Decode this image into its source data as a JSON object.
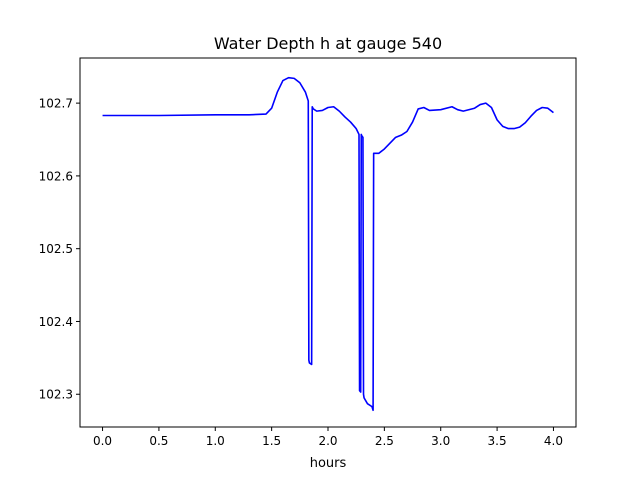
{
  "chart_data": {
    "type": "line",
    "title": "Water Depth h at gauge 540",
    "xlabel": "hours",
    "ylabel": "",
    "xlim": [
      -0.2,
      4.2
    ],
    "ylim": [
      102.255,
      102.762
    ],
    "xticks": [
      0.0,
      0.5,
      1.0,
      1.5,
      2.0,
      2.5,
      3.0,
      3.5,
      4.0
    ],
    "xtick_labels": [
      "0.0",
      "0.5",
      "1.0",
      "1.5",
      "2.0",
      "2.5",
      "3.0",
      "3.5",
      "4.0"
    ],
    "yticks": [
      102.3,
      102.4,
      102.5,
      102.6,
      102.7
    ],
    "ytick_labels": [
      "102.3",
      "102.4",
      "102.5",
      "102.6",
      "102.7"
    ],
    "grid": false,
    "series": [
      {
        "color": "#0000ff",
        "x": [
          0.0,
          0.5,
          1.0,
          1.3,
          1.45,
          1.5,
          1.55,
          1.6,
          1.65,
          1.7,
          1.75,
          1.8,
          1.825,
          1.83,
          1.835,
          1.855,
          1.86,
          1.87,
          1.9,
          1.95,
          2.0,
          2.05,
          2.1,
          2.15,
          2.2,
          2.25,
          2.275,
          2.28,
          2.29,
          2.295,
          2.3,
          2.31,
          2.315,
          2.32,
          2.35,
          2.39,
          2.4,
          2.405,
          2.45,
          2.5,
          2.6,
          2.65,
          2.7,
          2.75,
          2.8,
          2.85,
          2.9,
          3.0,
          3.1,
          3.15,
          3.2,
          3.3,
          3.35,
          3.4,
          3.45,
          3.5,
          3.55,
          3.6,
          3.65,
          3.7,
          3.75,
          3.8,
          3.85,
          3.9,
          3.95,
          4.0
        ],
        "y": [
          102.683,
          102.683,
          102.684,
          102.684,
          102.685,
          102.693,
          102.715,
          102.731,
          102.735,
          102.734,
          102.728,
          102.715,
          102.703,
          102.347,
          102.343,
          102.341,
          102.695,
          102.692,
          102.689,
          102.69,
          102.694,
          102.695,
          102.689,
          102.681,
          102.674,
          102.665,
          102.657,
          102.305,
          102.303,
          102.657,
          102.655,
          102.653,
          102.3,
          102.295,
          102.287,
          102.283,
          102.278,
          102.631,
          102.631,
          102.637,
          102.653,
          102.656,
          102.661,
          102.674,
          102.692,
          102.694,
          102.69,
          102.691,
          102.695,
          102.691,
          102.689,
          102.693,
          102.698,
          102.7,
          102.694,
          102.677,
          102.668,
          102.665,
          102.665,
          102.667,
          102.673,
          102.682,
          102.69,
          102.694,
          102.693,
          102.687
        ]
      }
    ]
  }
}
